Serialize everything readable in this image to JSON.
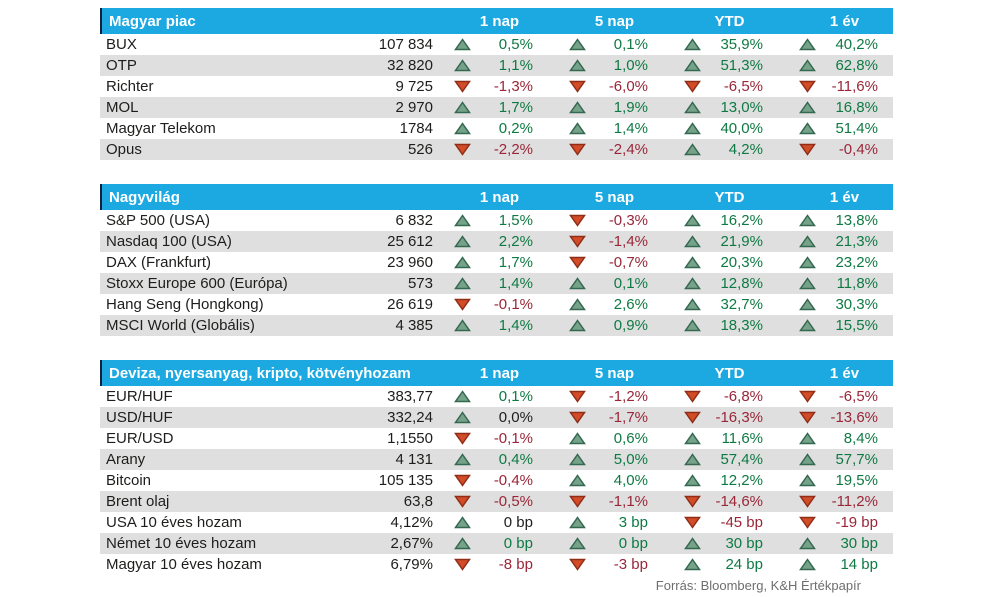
{
  "columns": [
    "1 nap",
    "5 nap",
    "YTD",
    "1 év"
  ],
  "footer": {
    "source": "Forrás: Bloomberg, K&H Értékpapír"
  },
  "colors": {
    "header_bg": "#1ca9e2",
    "header_text": "#ffffff",
    "row_alt_bg": "#dfdfdf",
    "positive_text": "#0e7a43",
    "negative_text": "#9a2638",
    "up_triangle_fill": "#76a289",
    "up_triangle_stroke": "#356851",
    "down_triangle_fill": "#d24d27",
    "down_triangle_stroke": "#8f2d18"
  },
  "sections": [
    {
      "title": "Magyar piac",
      "rows": [
        {
          "name": "BUX",
          "value": "107 834",
          "changes": [
            {
              "dir": "up",
              "text": "0,5%",
              "tone": "pos"
            },
            {
              "dir": "up",
              "text": "0,1%",
              "tone": "pos"
            },
            {
              "dir": "up",
              "text": "35,9%",
              "tone": "pos"
            },
            {
              "dir": "up",
              "text": "40,2%",
              "tone": "pos"
            }
          ]
        },
        {
          "name": "OTP",
          "value": "32 820",
          "changes": [
            {
              "dir": "up",
              "text": "1,1%",
              "tone": "pos"
            },
            {
              "dir": "up",
              "text": "1,0%",
              "tone": "pos"
            },
            {
              "dir": "up",
              "text": "51,3%",
              "tone": "pos"
            },
            {
              "dir": "up",
              "text": "62,8%",
              "tone": "pos"
            }
          ]
        },
        {
          "name": "Richter",
          "value": "9 725",
          "changes": [
            {
              "dir": "down",
              "text": "-1,3%",
              "tone": "neg"
            },
            {
              "dir": "down",
              "text": "-6,0%",
              "tone": "neg"
            },
            {
              "dir": "down",
              "text": "-6,5%",
              "tone": "neg"
            },
            {
              "dir": "down",
              "text": "-11,6%",
              "tone": "neg"
            }
          ]
        },
        {
          "name": "MOL",
          "value": "2 970",
          "changes": [
            {
              "dir": "up",
              "text": "1,7%",
              "tone": "pos"
            },
            {
              "dir": "up",
              "text": "1,9%",
              "tone": "pos"
            },
            {
              "dir": "up",
              "text": "13,0%",
              "tone": "pos"
            },
            {
              "dir": "up",
              "text": "16,8%",
              "tone": "pos"
            }
          ]
        },
        {
          "name": "Magyar Telekom",
          "value": "1784",
          "changes": [
            {
              "dir": "up",
              "text": "0,2%",
              "tone": "pos"
            },
            {
              "dir": "up",
              "text": "1,4%",
              "tone": "pos"
            },
            {
              "dir": "up",
              "text": "40,0%",
              "tone": "pos"
            },
            {
              "dir": "up",
              "text": "51,4%",
              "tone": "pos"
            }
          ]
        },
        {
          "name": "Opus",
          "value": "526",
          "changes": [
            {
              "dir": "down",
              "text": "-2,2%",
              "tone": "neg"
            },
            {
              "dir": "down",
              "text": "-2,4%",
              "tone": "neg"
            },
            {
              "dir": "up",
              "text": "4,2%",
              "tone": "pos"
            },
            {
              "dir": "down",
              "text": "-0,4%",
              "tone": "neg"
            }
          ]
        }
      ]
    },
    {
      "title": "Nagyvilág",
      "rows": [
        {
          "name": "S&P 500 (USA)",
          "value": "6 832",
          "changes": [
            {
              "dir": "up",
              "text": "1,5%",
              "tone": "pos"
            },
            {
              "dir": "down",
              "text": "-0,3%",
              "tone": "neg"
            },
            {
              "dir": "up",
              "text": "16,2%",
              "tone": "pos"
            },
            {
              "dir": "up",
              "text": "13,8%",
              "tone": "pos"
            }
          ]
        },
        {
          "name": "Nasdaq 100 (USA)",
          "value": "25 612",
          "changes": [
            {
              "dir": "up",
              "text": "2,2%",
              "tone": "pos"
            },
            {
              "dir": "down",
              "text": "-1,4%",
              "tone": "neg"
            },
            {
              "dir": "up",
              "text": "21,9%",
              "tone": "pos"
            },
            {
              "dir": "up",
              "text": "21,3%",
              "tone": "pos"
            }
          ]
        },
        {
          "name": "DAX (Frankfurt)",
          "value": "23 960",
          "changes": [
            {
              "dir": "up",
              "text": "1,7%",
              "tone": "pos"
            },
            {
              "dir": "down",
              "text": "-0,7%",
              "tone": "neg"
            },
            {
              "dir": "up",
              "text": "20,3%",
              "tone": "pos"
            },
            {
              "dir": "up",
              "text": "23,2%",
              "tone": "pos"
            }
          ]
        },
        {
          "name": "Stoxx Europe 600 (Európa)",
          "value": "573",
          "changes": [
            {
              "dir": "up",
              "text": "1,4%",
              "tone": "pos"
            },
            {
              "dir": "up",
              "text": "0,1%",
              "tone": "pos"
            },
            {
              "dir": "up",
              "text": "12,8%",
              "tone": "pos"
            },
            {
              "dir": "up",
              "text": "11,8%",
              "tone": "pos"
            }
          ]
        },
        {
          "name": "Hang Seng (Hongkong)",
          "value": "26 619",
          "changes": [
            {
              "dir": "down",
              "text": "-0,1%",
              "tone": "neg"
            },
            {
              "dir": "up",
              "text": "2,6%",
              "tone": "pos"
            },
            {
              "dir": "up",
              "text": "32,7%",
              "tone": "pos"
            },
            {
              "dir": "up",
              "text": "30,3%",
              "tone": "pos"
            }
          ]
        },
        {
          "name": "MSCI World (Globális)",
          "value": "4 385",
          "changes": [
            {
              "dir": "up",
              "text": "1,4%",
              "tone": "pos"
            },
            {
              "dir": "up",
              "text": "0,9%",
              "tone": "pos"
            },
            {
              "dir": "up",
              "text": "18,3%",
              "tone": "pos"
            },
            {
              "dir": "up",
              "text": "15,5%",
              "tone": "pos"
            }
          ]
        }
      ]
    },
    {
      "title": "Deviza, nyersanyag, kripto, kötvényhozam",
      "rows": [
        {
          "name": "EUR/HUF",
          "value": "383,77",
          "changes": [
            {
              "dir": "up",
              "text": "0,1%",
              "tone": "pos"
            },
            {
              "dir": "down",
              "text": "-1,2%",
              "tone": "neg"
            },
            {
              "dir": "down",
              "text": "-6,8%",
              "tone": "neg"
            },
            {
              "dir": "down",
              "text": "-6,5%",
              "tone": "neg"
            }
          ]
        },
        {
          "name": "USD/HUF",
          "value": "332,24",
          "changes": [
            {
              "dir": "up",
              "text": "0,0%",
              "tone": "neutral"
            },
            {
              "dir": "down",
              "text": "-1,7%",
              "tone": "neg"
            },
            {
              "dir": "down",
              "text": "-16,3%",
              "tone": "neg"
            },
            {
              "dir": "down",
              "text": "-13,6%",
              "tone": "neg"
            }
          ]
        },
        {
          "name": "EUR/USD",
          "value": "1,1550",
          "changes": [
            {
              "dir": "down",
              "text": "-0,1%",
              "tone": "neg"
            },
            {
              "dir": "up",
              "text": "0,6%",
              "tone": "pos"
            },
            {
              "dir": "up",
              "text": "11,6%",
              "tone": "pos"
            },
            {
              "dir": "up",
              "text": "8,4%",
              "tone": "pos"
            }
          ]
        },
        {
          "name": "Arany",
          "value": "4 131",
          "changes": [
            {
              "dir": "up",
              "text": "0,4%",
              "tone": "pos"
            },
            {
              "dir": "up",
              "text": "5,0%",
              "tone": "pos"
            },
            {
              "dir": "up",
              "text": "57,4%",
              "tone": "pos"
            },
            {
              "dir": "up",
              "text": "57,7%",
              "tone": "pos"
            }
          ]
        },
        {
          "name": "Bitcoin",
          "value": "105 135",
          "changes": [
            {
              "dir": "down",
              "text": "-0,4%",
              "tone": "neg"
            },
            {
              "dir": "up",
              "text": "4,0%",
              "tone": "pos"
            },
            {
              "dir": "up",
              "text": "12,2%",
              "tone": "pos"
            },
            {
              "dir": "up",
              "text": "19,5%",
              "tone": "pos"
            }
          ]
        },
        {
          "name": "Brent olaj",
          "value": "63,8",
          "changes": [
            {
              "dir": "down",
              "text": "-0,5%",
              "tone": "neg"
            },
            {
              "dir": "down",
              "text": "-1,1%",
              "tone": "neg"
            },
            {
              "dir": "down",
              "text": "-14,6%",
              "tone": "neg"
            },
            {
              "dir": "down",
              "text": "-11,2%",
              "tone": "neg"
            }
          ]
        },
        {
          "name": "USA 10 éves hozam",
          "value": "4,12%",
          "changes": [
            {
              "dir": "up",
              "text": "0 bp",
              "tone": "neutral"
            },
            {
              "dir": "up",
              "text": "3 bp",
              "tone": "pos"
            },
            {
              "dir": "down",
              "text": "-45 bp",
              "tone": "neg"
            },
            {
              "dir": "down",
              "text": "-19 bp",
              "tone": "neg"
            }
          ]
        },
        {
          "name": "Német 10 éves hozam",
          "value": "2,67%",
          "changes": [
            {
              "dir": "up",
              "text": "0 bp",
              "tone": "pos"
            },
            {
              "dir": "up",
              "text": "0 bp",
              "tone": "pos"
            },
            {
              "dir": "up",
              "text": "30 bp",
              "tone": "pos"
            },
            {
              "dir": "up",
              "text": "30 bp",
              "tone": "pos"
            }
          ]
        },
        {
          "name": "Magyar 10 éves hozam",
          "value": "6,79%",
          "changes": [
            {
              "dir": "down",
              "text": "-8 bp",
              "tone": "neg"
            },
            {
              "dir": "down",
              "text": "-3 bp",
              "tone": "neg"
            },
            {
              "dir": "up",
              "text": "24 bp",
              "tone": "pos"
            },
            {
              "dir": "up",
              "text": "14 bp",
              "tone": "pos"
            }
          ]
        }
      ]
    }
  ]
}
